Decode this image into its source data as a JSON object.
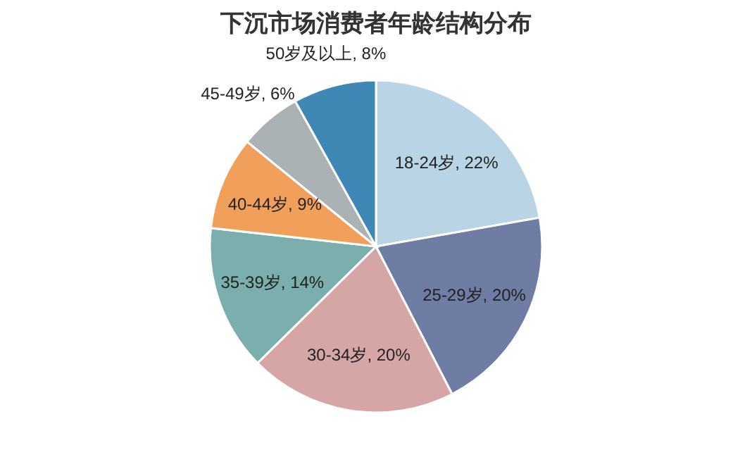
{
  "chart_data": {
    "type": "pie",
    "title": "下沉市场消费者年龄结构分布",
    "categories": [
      "18-24岁",
      "25-29岁",
      "30-34岁",
      "35-39岁",
      "40-44岁",
      "45-49岁",
      "50岁及以上"
    ],
    "values": [
      22,
      20,
      20,
      14,
      9,
      6,
      8
    ],
    "value_labels": [
      "22%",
      "20%",
      "20%",
      "14%",
      "9%",
      "6%",
      "8%"
    ],
    "colors": [
      "#b9d4e5",
      "#6f7ca3",
      "#d5a6a5",
      "#7aafae",
      "#f1a05b",
      "#abb2b5",
      "#3f88b6"
    ],
    "legend": false
  }
}
